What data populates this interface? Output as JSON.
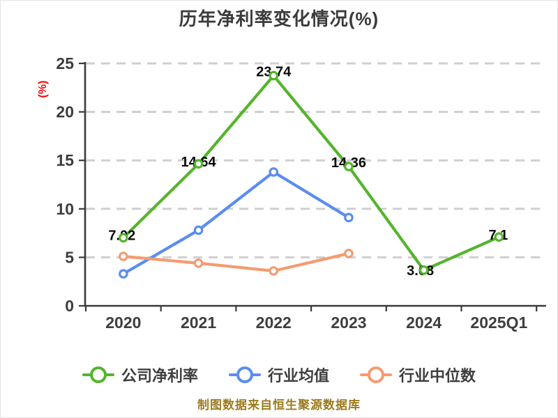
{
  "footer": "制图数据来自恒生聚源数据库",
  "colors": {
    "title_text": "#3b3b3b",
    "axis_line": "#3a3a3a",
    "tick_text": "#3e3e3e",
    "grid_line": "#cfcfcf",
    "data_label_text": "#0a0a0a",
    "y_unit_label": "#ff0000",
    "footer_text": "#9c7b1d",
    "series_green": "#55b42c",
    "series_blue": "#5b8def",
    "series_orange": "#f59b70"
  },
  "chart_data": {
    "type": "line",
    "title": "历年净利率变化情况(%)",
    "ylabel": "(%)",
    "xlabel": "",
    "categories": [
      "2020",
      "2021",
      "2022",
      "2023",
      "2024",
      "2025Q1"
    ],
    "ylim": [
      0,
      25
    ],
    "yticks": [
      0,
      5,
      10,
      15,
      20,
      25
    ],
    "grid": "horizontal-dashed",
    "legend_position": "bottom",
    "series": [
      {
        "name": "公司净利率",
        "color": "#55b42c",
        "values": [
          7.02,
          14.64,
          23.74,
          14.36,
          3.68,
          7.1
        ],
        "point_labels": [
          "7.02",
          "14.64",
          "23.74",
          "14.36",
          "3.68",
          "7.1"
        ],
        "label_offsets": [
          [
            -2,
            -3
          ],
          [
            0,
            -2
          ],
          [
            0,
            -5
          ],
          [
            0,
            -5
          ],
          [
            -5,
            1
          ],
          [
            -1,
            -2
          ]
        ]
      },
      {
        "name": "行业均值",
        "color": "#5b8def",
        "values": [
          3.3,
          7.8,
          13.8,
          9.1,
          null,
          null
        ],
        "point_labels": null
      },
      {
        "name": "行业中位数",
        "color": "#f59b70",
        "values": [
          5.1,
          4.4,
          3.6,
          5.4,
          null,
          null
        ],
        "point_labels": null
      }
    ]
  }
}
